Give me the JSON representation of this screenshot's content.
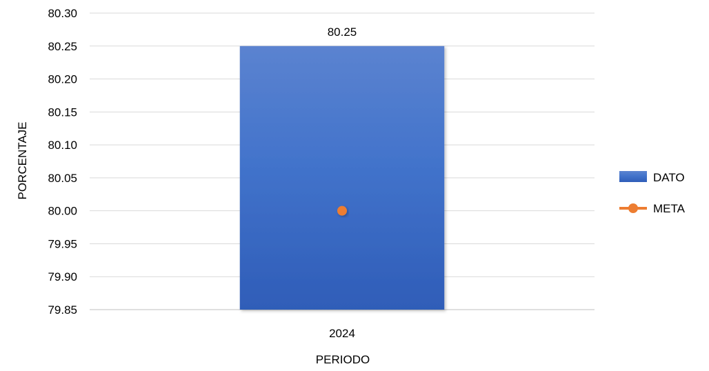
{
  "chart_data": {
    "type": "bar",
    "categories": [
      "2024"
    ],
    "series": [
      {
        "name": "DATO",
        "kind": "bar",
        "values": [
          80.25
        ],
        "color": "#4472C4"
      },
      {
        "name": "META",
        "kind": "line",
        "values": [
          80.0
        ],
        "color": "#ED7D31"
      }
    ],
    "data_labels": [
      "80.25"
    ],
    "xlabel": "PERIODO",
    "ylabel": "PORCENTAJE",
    "ylim": [
      79.85,
      80.3
    ],
    "yticks": [
      "80.30",
      "80.25",
      "80.20",
      "80.15",
      "80.10",
      "80.05",
      "80.00",
      "79.95",
      "79.90",
      "79.85"
    ],
    "grid": true,
    "legend_position": "right"
  }
}
